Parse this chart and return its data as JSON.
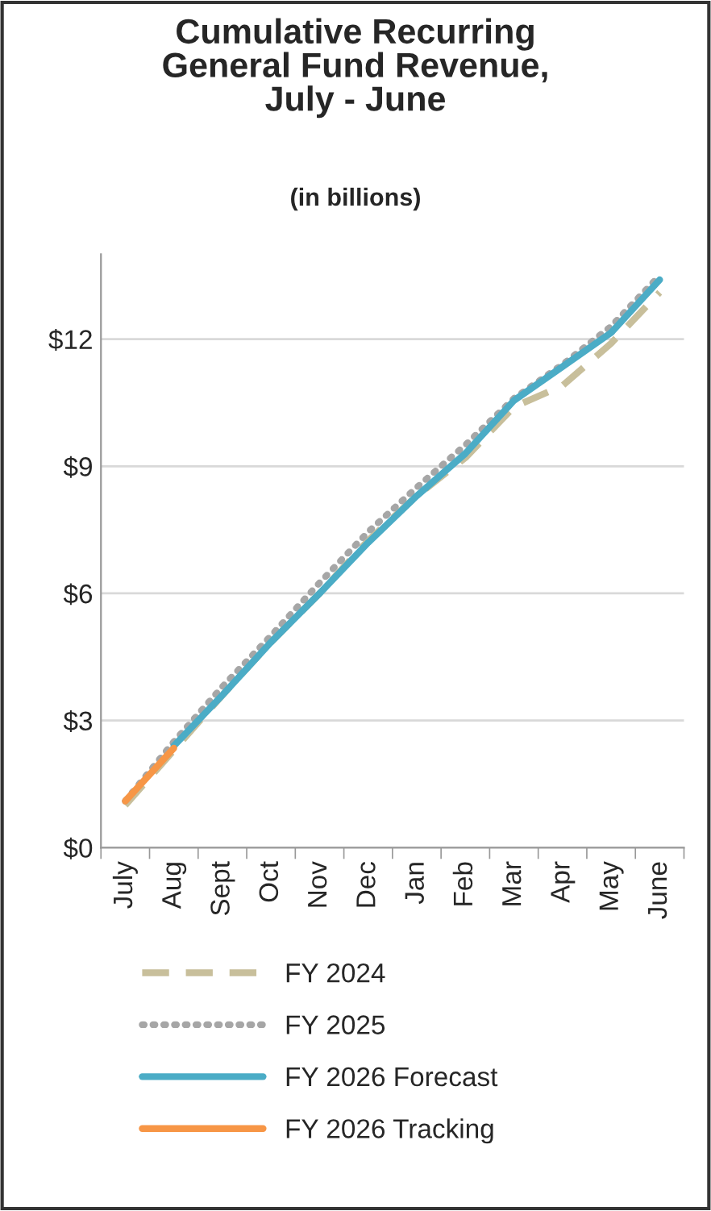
{
  "chart_data": {
    "type": "line",
    "title": "Cumulative Recurring\nGeneral Fund Revenue,\nJuly - June",
    "subtitle": "(in billions)",
    "categories": [
      "July",
      "Aug",
      "Sept",
      "Oct",
      "Nov",
      "Dec",
      "Jan",
      "Feb",
      "Mar",
      "Apr",
      "May",
      "June"
    ],
    "series": [
      {
        "name": "FY 2024",
        "color": "#c8bf9b",
        "line_style": "dashed",
        "values": [
          1.0,
          2.3,
          3.6,
          4.85,
          6.0,
          7.25,
          8.3,
          9.2,
          10.4,
          10.9,
          11.9,
          13.1
        ]
      },
      {
        "name": "FY 2025",
        "color": "#a6a6a6",
        "line_style": "dotted",
        "values": [
          1.1,
          2.5,
          3.8,
          5.0,
          6.25,
          7.45,
          8.5,
          9.5,
          10.6,
          11.4,
          12.3,
          13.5
        ]
      },
      {
        "name": "FY 2026 Forecast",
        "color": "#4bacc6",
        "line_style": "solid",
        "values": [
          null,
          2.4,
          3.6,
          4.85,
          6.0,
          7.2,
          8.3,
          9.3,
          10.55,
          11.35,
          12.15,
          13.4
        ]
      },
      {
        "name": "FY 2026 Tracking",
        "color": "#f79646",
        "line_style": "solid",
        "values": [
          1.1,
          2.35,
          null,
          null,
          null,
          null,
          null,
          null,
          null,
          null,
          null,
          null
        ]
      }
    ],
    "ylim": [
      0,
      14
    ],
    "yticks": [
      {
        "value": 0,
        "label": "$0"
      },
      {
        "value": 3,
        "label": "$3"
      },
      {
        "value": 6,
        "label": "$6"
      },
      {
        "value": 9,
        "label": "$9"
      },
      {
        "value": 12,
        "label": "$12"
      }
    ],
    "grid": "y",
    "legend": "bottom"
  }
}
